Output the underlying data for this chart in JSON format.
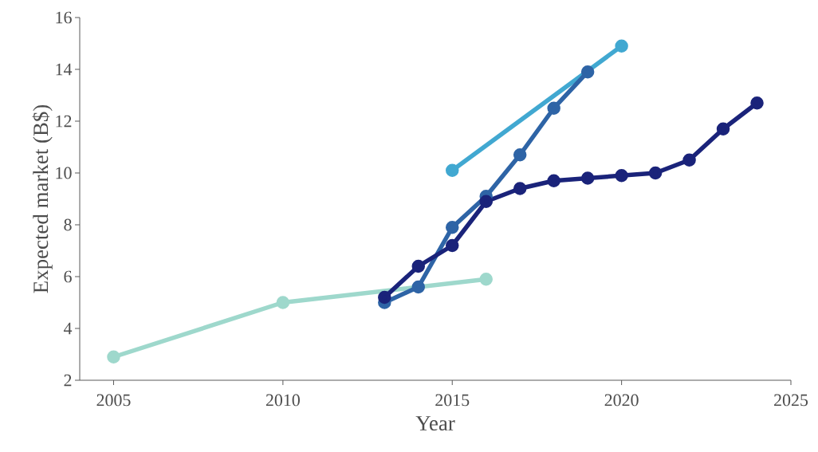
{
  "chart_data": {
    "type": "line",
    "xlabel": "Year",
    "ylabel": "Expected market (B$)",
    "xlim": [
      2004,
      2025
    ],
    "xticks": [
      2005,
      2010,
      2015,
      2020,
      2025
    ],
    "ylim": [
      2,
      16
    ],
    "yticks": [
      2,
      4,
      6,
      8,
      10,
      12,
      14,
      16
    ],
    "marker": "circle",
    "line_style": "solid",
    "grid": false,
    "series": [
      {
        "color": "#9ed8cc",
        "x": [
          2005,
          2010,
          2016
        ],
        "values": [
          2.9,
          5.0,
          5.9
        ]
      },
      {
        "color": "#41a8d1",
        "x": [
          2015,
          2020
        ],
        "values": [
          10.1,
          14.9
        ]
      },
      {
        "color": "#2e64a6",
        "x": [
          2013,
          2014,
          2015,
          2016,
          2017,
          2018,
          2019
        ],
        "values": [
          5.0,
          5.6,
          7.9,
          9.1,
          10.7,
          12.5,
          13.9
        ]
      },
      {
        "color": "#1a237a",
        "x": [
          2013,
          2014,
          2015,
          2016,
          2017,
          2018,
          2019,
          2020,
          2021,
          2022,
          2023,
          2024
        ],
        "values": [
          5.2,
          6.4,
          7.2,
          8.9,
          9.4,
          9.7,
          9.8,
          9.9,
          10.0,
          10.5,
          11.7,
          12.7
        ]
      }
    ]
  }
}
